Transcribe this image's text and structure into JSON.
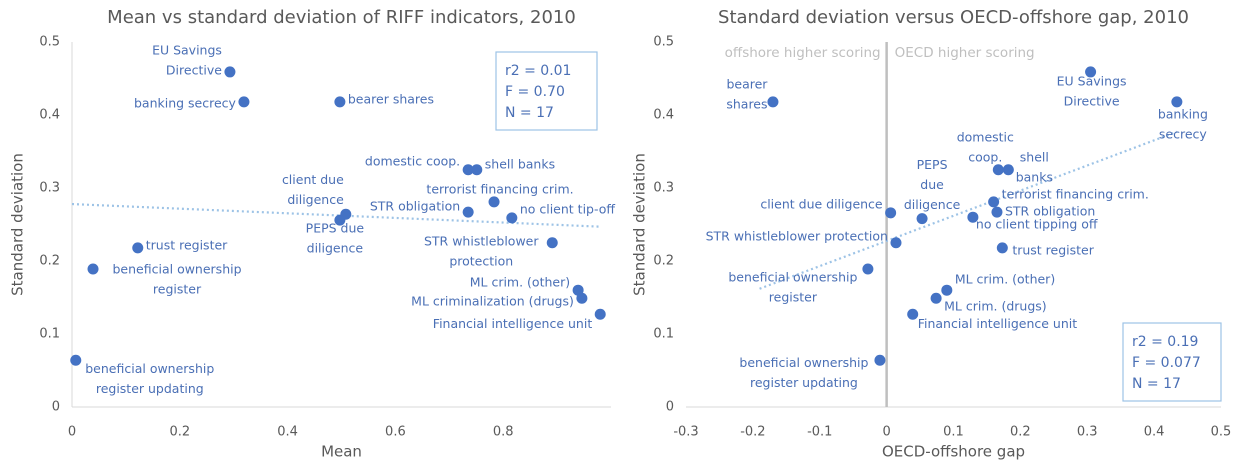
{
  "chart_data": [
    {
      "type": "scatter",
      "title": "Mean vs standard deviation of RIFF indicators, 2010",
      "x_label": "Mean",
      "y_label": "Standard deviation",
      "color": "#4472c4",
      "x": [
        0.293,
        0.319,
        0.497,
        0.735,
        0.751,
        0.508,
        0.497,
        0.735,
        0.783,
        0.816,
        0.891,
        0.122,
        0.039,
        0.939,
        0.946,
        0.98,
        0.007
      ],
      "values": [
        0.459,
        0.418,
        0.418,
        0.325,
        0.325,
        0.264,
        0.256,
        0.267,
        0.281,
        0.259,
        0.225,
        0.218,
        0.189,
        0.16,
        0.149,
        0.127,
        0.064
      ],
      "point_labels": [
        [
          "EU Savings",
          "Directive"
        ],
        [
          "banking secrecy"
        ],
        [
          "bearer shares"
        ],
        [
          "domestic coop."
        ],
        [
          "shell banks"
        ],
        [
          "client due",
          "diligence"
        ],
        [
          "PEPS due",
          "diligence"
        ],
        [
          "STR obligation"
        ],
        [
          "terrorist financing crim."
        ],
        [
          "no client tip-off"
        ],
        [
          "STR whistleblower",
          "protection"
        ],
        [
          "trust register"
        ],
        [
          "beneficial ownership",
          "register"
        ],
        [
          "ML crim. (other)"
        ],
        [
          "ML criminalization (drugs)"
        ],
        [
          "Financial intelligence unit"
        ],
        [
          "beneficial ownership",
          "register updating"
        ]
      ],
      "trendline": {
        "x": [
          0,
          0.98
        ],
        "values": [
          0.278,
          0.247
        ]
      },
      "annotations": [
        "r2 = 0.01",
        "F = 0.70",
        "N = 17"
      ],
      "xlim": [
        0,
        1
      ],
      "ylim": [
        0,
        0.5
      ],
      "xticks": [
        0,
        0.2,
        0.4,
        0.6,
        0.8
      ],
      "yticks": [
        0,
        0.1,
        0.2,
        0.3,
        0.4,
        0.5
      ]
    },
    {
      "type": "scatter",
      "title": "Standard deviation versus OECD-offshore gap, 2010",
      "x_label": "OECD-offshore gap",
      "y_label": "Standard deviation",
      "color": "#4472c4",
      "x": [
        0.305,
        0.434,
        -0.17,
        0.167,
        0.182,
        0.006,
        0.053,
        0.16,
        0.165,
        0.129,
        0.014,
        0.173,
        -0.028,
        0.09,
        0.074,
        0.039,
        -0.01
      ],
      "values": [
        0.459,
        0.418,
        0.418,
        0.325,
        0.325,
        0.266,
        0.258,
        0.281,
        0.267,
        0.26,
        0.225,
        0.218,
        0.189,
        0.16,
        0.149,
        0.127,
        0.064
      ],
      "point_labels": [
        [
          "EU Savings",
          "Directive"
        ],
        [
          "banking",
          "secrecy"
        ],
        [
          "bearer",
          "shares"
        ],
        [
          "domestic",
          "coop."
        ],
        [
          "shell",
          "banks"
        ],
        [
          "client due diligence"
        ],
        [
          "PEPS",
          "due",
          "diligence"
        ],
        [
          "terrorist financing crim."
        ],
        [
          "STR obligation"
        ],
        [
          "no client tipping off"
        ],
        [
          "STR whistleblower protection"
        ],
        [
          "trust register"
        ],
        [
          "beneficial ownership",
          "register"
        ],
        [
          "ML crim. (other)"
        ],
        [
          "ML crim. (drugs)"
        ],
        [
          "Financial intelligence unit"
        ],
        [
          "beneficial ownership",
          "register updating"
        ]
      ],
      "trendline": {
        "x": [
          -0.19,
          0.434
        ],
        "values": [
          0.162,
          0.377
        ]
      },
      "annotations": [
        "r2 = 0.19",
        "F = 0.077",
        "N = 17"
      ],
      "region_labels": [
        "offshore higher scoring",
        "OECD higher scoring"
      ],
      "xlim": [
        -0.3,
        0.5
      ],
      "ylim": [
        0,
        0.5
      ],
      "xticks": [
        -0.3,
        -0.2,
        -0.1,
        0,
        0.1,
        0.2,
        0.3,
        0.4,
        0.5
      ],
      "yticks": [
        0,
        0.1,
        0.2,
        0.3,
        0.4,
        0.5
      ]
    }
  ]
}
